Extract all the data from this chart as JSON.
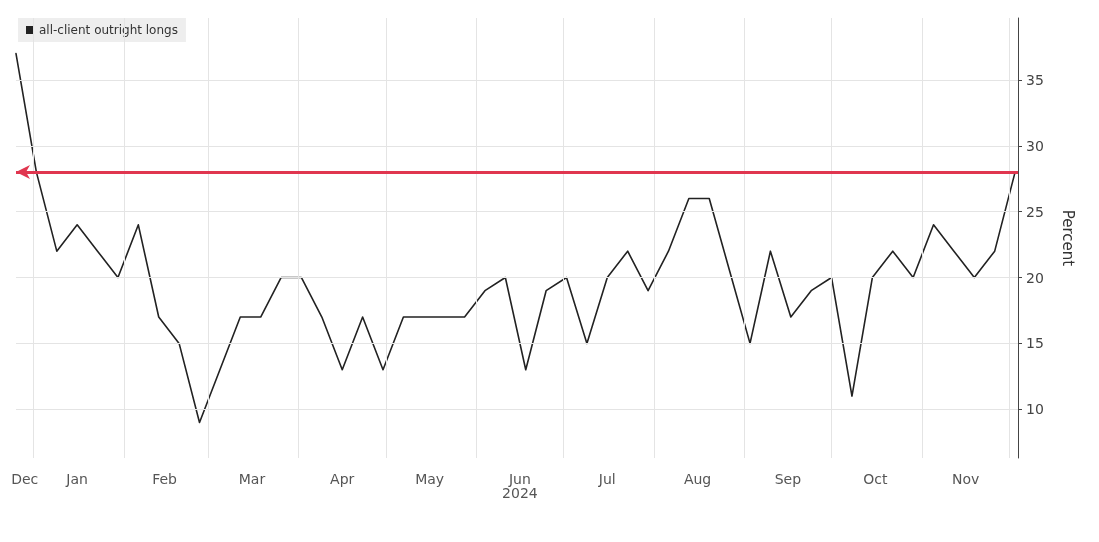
{
  "chart_data": {
    "type": "line",
    "ylabel": "Percent",
    "x": [
      "2023-12-26",
      "2024-01-02",
      "2024-01-09",
      "2024-01-16",
      "2024-01-23",
      "2024-01-30",
      "2024-02-06",
      "2024-02-13",
      "2024-02-20",
      "2024-02-27",
      "2024-03-05",
      "2024-03-12",
      "2024-03-19",
      "2024-03-26",
      "2024-04-02",
      "2024-04-09",
      "2024-04-16",
      "2024-04-23",
      "2024-04-30",
      "2024-05-07",
      "2024-05-14",
      "2024-05-21",
      "2024-05-28",
      "2024-06-04",
      "2024-06-11",
      "2024-06-18",
      "2024-06-25",
      "2024-07-02",
      "2024-07-09",
      "2024-07-16",
      "2024-07-23",
      "2024-07-30",
      "2024-08-06",
      "2024-08-13",
      "2024-08-20",
      "2024-08-27",
      "2024-09-03",
      "2024-09-10",
      "2024-09-17",
      "2024-09-24",
      "2024-10-01",
      "2024-10-08",
      "2024-10-15",
      "2024-10-22",
      "2024-10-29",
      "2024-11-05",
      "2024-11-12",
      "2024-11-19",
      "2024-11-26",
      "2024-12-03"
    ],
    "series": [
      {
        "name": "all-client outright longs",
        "color": "#222222",
        "values": [
          37,
          28,
          22,
          24,
          22,
          20,
          24,
          17,
          15,
          9,
          13,
          17,
          17,
          20,
          20,
          17,
          13,
          17,
          13,
          17,
          17,
          17,
          17,
          19,
          20,
          13,
          19,
          20,
          15,
          20,
          22,
          19,
          22,
          26,
          26,
          20.5,
          15,
          22,
          17,
          19,
          20,
          11,
          20,
          22,
          20,
          24,
          22,
          20,
          22,
          28
        ]
      }
    ],
    "xlim": [
      "2023-12-26",
      "2024-12-04"
    ],
    "xticks": [
      {
        "value": "2023-12-29",
        "label": "Dec"
      },
      {
        "value": "2024-01-01",
        "label": null
      },
      {
        "value": "2024-01-16",
        "label": "Jan"
      },
      {
        "value": "2024-02-01",
        "label": null
      },
      {
        "value": "2024-02-15",
        "label": "Feb"
      },
      {
        "value": "2024-03-01",
        "label": null
      },
      {
        "value": "2024-03-16",
        "label": "Mar"
      },
      {
        "value": "2024-04-01",
        "label": null
      },
      {
        "value": "2024-04-16",
        "label": "Apr"
      },
      {
        "value": "2024-05-01",
        "label": null
      },
      {
        "value": "2024-05-16",
        "label": "May"
      },
      {
        "value": "2024-06-01",
        "label": null
      },
      {
        "value": "2024-06-16",
        "label": "Jun\n2024"
      },
      {
        "value": "2024-07-01",
        "label": null
      },
      {
        "value": "2024-07-16",
        "label": "Jul"
      },
      {
        "value": "2024-08-01",
        "label": null
      },
      {
        "value": "2024-08-16",
        "label": "Aug"
      },
      {
        "value": "2024-09-01",
        "label": null
      },
      {
        "value": "2024-09-16",
        "label": "Sep"
      },
      {
        "value": "2024-10-01",
        "label": null
      },
      {
        "value": "2024-10-16",
        "label": "Oct"
      },
      {
        "value": "2024-11-01",
        "label": null
      },
      {
        "value": "2024-11-16",
        "label": "Nov"
      },
      {
        "value": "2024-12-01",
        "label": null
      }
    ],
    "ylim": [
      6.3,
      39.7
    ],
    "yticks": [
      10,
      15,
      20,
      25,
      30,
      35
    ],
    "ref_lines": [
      {
        "axis": "y",
        "value": 28,
        "color": "#e0364f"
      }
    ],
    "grid": true,
    "legend": "top left",
    "marker": "none",
    "line_style": "solid"
  }
}
